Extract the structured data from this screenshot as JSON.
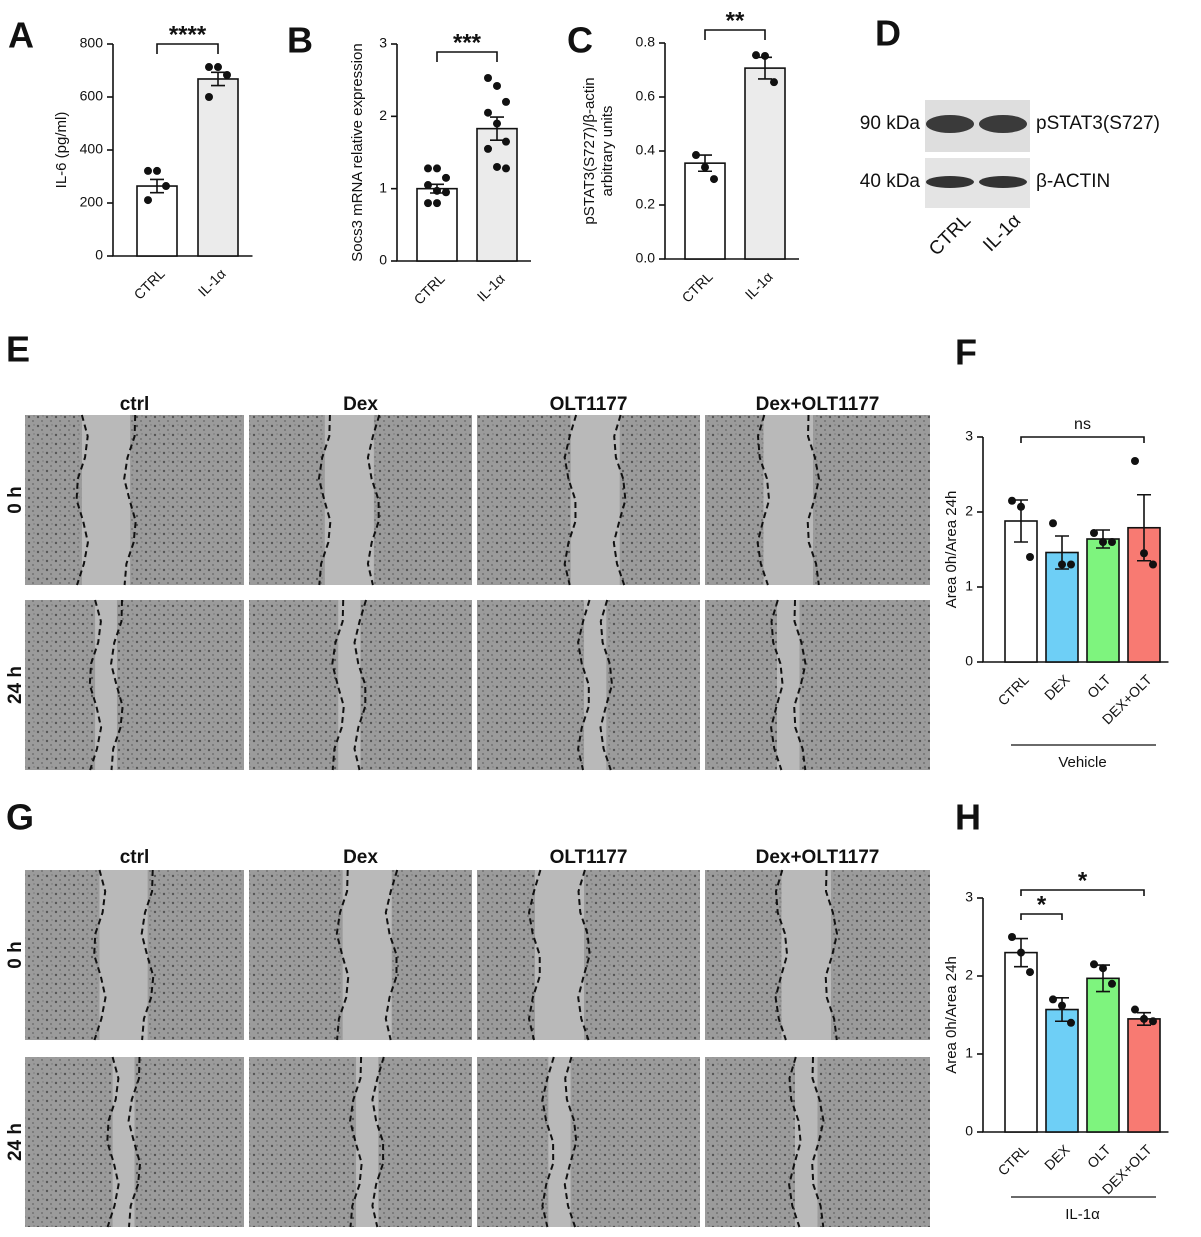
{
  "chart_data": [
    {
      "type": "bar",
      "panel": "A",
      "ylabel": "IL-6 (pg/ml)",
      "categories": [
        "CTRL",
        "IL-1α"
      ],
      "values": [
        264,
        668
      ],
      "errors": [
        25,
        25
      ],
      "points": [
        [
          321,
          321,
          264,
          211
        ],
        [
          713,
          713,
          683,
          600
        ]
      ],
      "colors": [
        "#ffffff",
        "#ebebeb"
      ],
      "ylim": [
        0,
        800
      ],
      "yticks": [
        0,
        200,
        400,
        600,
        800
      ],
      "annotations": [
        {
          "text": "****",
          "from": 0,
          "to": 1
        }
      ]
    },
    {
      "type": "bar",
      "panel": "B",
      "ylabel": "Socs3 mRNA relative expression",
      "categories": [
        "CTRL",
        "IL-1α"
      ],
      "values": [
        1.0,
        1.83
      ],
      "errors": [
        0.06,
        0.16
      ],
      "points": [
        [
          1.28,
          1.28,
          1.15,
          1.05,
          0.97,
          0.95,
          0.8,
          0.8
        ],
        [
          2.53,
          2.42,
          2.2,
          2.05,
          1.9,
          1.65,
          1.55,
          1.3,
          1.28
        ]
      ],
      "colors": [
        "#ffffff",
        "#ebebeb"
      ],
      "ylim": [
        0,
        3
      ],
      "yticks": [
        0,
        1,
        2,
        3
      ],
      "annotations": [
        {
          "text": "***",
          "from": 0,
          "to": 1
        }
      ]
    },
    {
      "type": "bar",
      "panel": "C",
      "ylabel": "pSTAT3(S727)/β-actin",
      "ylabel2": "arbitrary units",
      "categories": [
        "CTRL",
        "IL-1α"
      ],
      "values": [
        0.355,
        0.707
      ],
      "errors": [
        0.03,
        0.04
      ],
      "points": [
        [
          0.385,
          0.34,
          0.296
        ],
        [
          0.755,
          0.752,
          0.655
        ]
      ],
      "colors": [
        "#ffffff",
        "#ebebeb"
      ],
      "ylim": [
        0,
        0.8
      ],
      "yticks": [
        {
          "value": 0,
          "label": "0.0"
        },
        0.2,
        0.4,
        0.6,
        0.8
      ],
      "annotations": [
        {
          "text": "**",
          "from": 0,
          "to": 1
        }
      ]
    },
    {
      "type": "bar",
      "panel": "F",
      "ylabel": "Area 0h/Area 24h",
      "categories": [
        "CTRL",
        "DEX",
        "OLT",
        "DEX+OLT"
      ],
      "values": [
        1.88,
        1.46,
        1.64,
        1.79
      ],
      "errors": [
        0.28,
        0.22,
        0.12,
        0.44
      ],
      "points": [
        [
          2.15,
          2.07,
          1.4
        ],
        [
          1.85,
          1.3,
          1.3
        ],
        [
          1.72,
          1.6,
          1.6
        ],
        [
          2.68,
          1.45,
          1.3
        ]
      ],
      "colors": [
        "#ffffff",
        "#6ecff6",
        "#7ef47e",
        "#f87a72"
      ],
      "ylim": [
        0,
        3
      ],
      "yticks": [
        0,
        1,
        2,
        3
      ],
      "group": "Vehicle",
      "annotations": [
        {
          "text": "ns",
          "from": 0,
          "to": 3
        }
      ]
    },
    {
      "type": "bar",
      "panel": "H",
      "ylabel": "Area 0h/Area 24h",
      "categories": [
        "CTRL",
        "DEX",
        "OLT",
        "DEX+OLT"
      ],
      "values": [
        2.3,
        1.57,
        1.97,
        1.45
      ],
      "errors": [
        0.18,
        0.15,
        0.17,
        0.08
      ],
      "points": [
        [
          2.5,
          2.3,
          2.05
        ],
        [
          1.7,
          1.62,
          1.4
        ],
        [
          2.15,
          2.1,
          1.9
        ],
        [
          1.57,
          1.45,
          1.42
        ]
      ],
      "colors": [
        "#ffffff",
        "#6ecff6",
        "#7ef47e",
        "#f87a72"
      ],
      "ylim": [
        0,
        3
      ],
      "yticks": [
        0,
        1,
        2,
        3
      ],
      "group": "IL-1α",
      "annotations": [
        {
          "text": "*",
          "from": 0,
          "to": 1
        },
        {
          "text": "*",
          "from": 0,
          "to": 3
        }
      ]
    }
  ],
  "blot": {
    "panel": "D",
    "bands": [
      {
        "size": "90 kDa",
        "protein": "pSTAT3(S727)"
      },
      {
        "size": "40 kDa",
        "protein": "β-ACTIN"
      }
    ],
    "lanes": [
      "CTRL",
      "IL-1α"
    ]
  },
  "scratch_assays": [
    {
      "panel": "E",
      "columns": [
        "ctrl",
        "Dex",
        "OLT1177",
        "Dex+OLT1177"
      ],
      "rows": [
        "0 h",
        "24 h"
      ]
    },
    {
      "panel": "G",
      "columns": [
        "ctrl",
        "Dex",
        "OLT1177",
        "Dex+OLT1177"
      ],
      "rows": [
        "0 h",
        "24 h"
      ]
    }
  ]
}
